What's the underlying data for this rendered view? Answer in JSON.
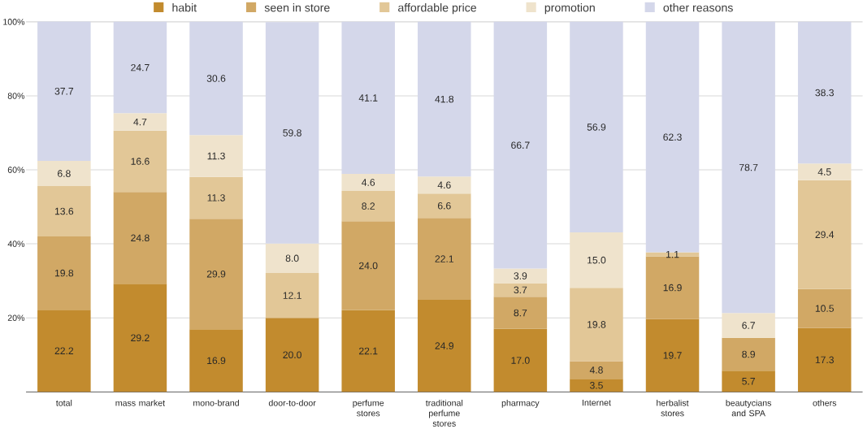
{
  "chart_data": {
    "type": "bar",
    "stacked": true,
    "categories": [
      "total",
      "mass market",
      "mono-brand",
      "door-to-door",
      "perfume stores",
      "traditional perfume stores",
      "pharmacy",
      "Internet",
      "herbalist stores",
      "beautycians and SPA",
      "others"
    ],
    "series": [
      {
        "name": "habit",
        "color": "#c28b2e",
        "values": [
          22.2,
          29.2,
          16.9,
          20.0,
          22.1,
          24.9,
          17.0,
          3.5,
          19.7,
          5.7,
          17.3
        ],
        "value_labels": [
          "22.2",
          "29.2",
          "16.9",
          "20.0",
          "22.1",
          "24.9",
          "17.0",
          "3.5",
          "19.7",
          "5.7",
          "17.3"
        ]
      },
      {
        "name": "seen in store",
        "color": "#d1a865",
        "values": [
          19.8,
          24.8,
          29.9,
          null,
          24.0,
          22.1,
          8.7,
          4.8,
          16.9,
          8.9,
          10.5
        ],
        "value_labels": [
          "19.8",
          "24.8",
          "29.9",
          null,
          "24.0",
          "22.1",
          "8.7",
          "4.8",
          "16.9",
          "8.9",
          "10.5"
        ]
      },
      {
        "name": "affordable price",
        "color": "#e2c797",
        "values": [
          13.6,
          16.6,
          11.3,
          12.1,
          8.2,
          6.6,
          3.7,
          19.8,
          1.1,
          null,
          29.4
        ],
        "value_labels": [
          "13.6",
          "16.6",
          "11.3",
          "12.1",
          "8.2",
          "6.6",
          "3.7",
          "19.8",
          "1.1",
          null,
          "29.4"
        ]
      },
      {
        "name": "promotion",
        "color": "#efe3cc",
        "values": [
          6.8,
          4.7,
          11.3,
          8.0,
          4.6,
          4.6,
          3.9,
          15.0,
          null,
          6.7,
          4.5
        ],
        "value_labels": [
          "6.8",
          "4.7",
          "11.3",
          "8.0",
          "4.6",
          "4.6",
          "3.9",
          "15.0",
          null,
          "6.7",
          "4.5"
        ]
      },
      {
        "name": "other reasons",
        "color": "#d4d7ea",
        "values": [
          37.7,
          24.7,
          30.6,
          59.8,
          41.1,
          41.8,
          66.7,
          56.9,
          62.3,
          78.7,
          38.3
        ],
        "value_labels": [
          "37.7",
          "24.7",
          "30.6",
          "59.8",
          "41.1",
          "41.8",
          "66.7",
          "56.9",
          "62.3",
          "78.7",
          "38.3"
        ]
      }
    ],
    "ylim": [
      0,
      100
    ],
    "yticks": [
      {
        "value": 20,
        "label": "20%"
      },
      {
        "value": 40,
        "label": "40%"
      },
      {
        "value": 60,
        "label": "60%"
      },
      {
        "value": 80,
        "label": "80%"
      },
      {
        "value": 100,
        "label": "100%"
      }
    ],
    "grid": "y",
    "legend": "top"
  }
}
